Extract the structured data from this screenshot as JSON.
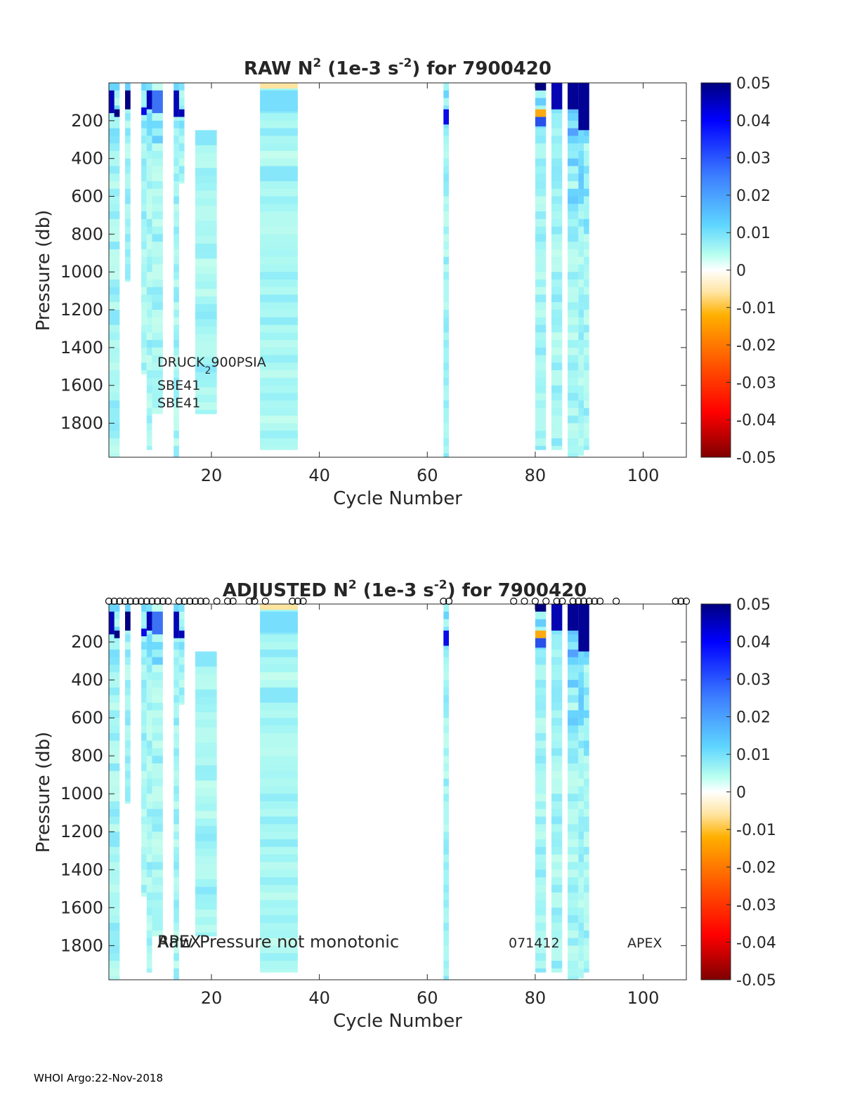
{
  "footer": "WHOI Argo:22-Nov-2018",
  "colorbar": {
    "ticks": [
      "0.05",
      "0.04",
      "0.03",
      "0.02",
      "0.01",
      "0",
      "-0.01",
      "-0.02",
      "-0.03",
      "-0.04",
      "-0.05"
    ],
    "range": [
      -0.05,
      0.05
    ]
  },
  "chart_data": [
    {
      "type": "heatmap",
      "title": {
        "prefix": "RAW N",
        "sup1": "2",
        "mid": " (1e-3 s",
        "sup2": "-2",
        "suffix": ") for 7900420"
      },
      "xlabel": "Cycle Number",
      "ylabel": "Pressure (db)",
      "xlim": [
        1,
        108
      ],
      "ylim": [
        0,
        1980
      ],
      "xticks": [
        "20",
        "40",
        "60",
        "80",
        "100"
      ],
      "yticks": [
        "200",
        "400",
        "600",
        "800",
        "1000",
        "1200",
        "1400",
        "1600",
        "1800"
      ],
      "annotations": {
        "sensor_main": "DRUCK",
        "sensor_sub": "2",
        "sensor_rest": "900PSIA",
        "line2": "SBE41",
        "line3": "SBE41"
      },
      "profiles": [
        {
          "x0": 1,
          "x1": 3,
          "pmax": 1980
        },
        {
          "x0": 4,
          "x1": 5,
          "pmax": 1050
        },
        {
          "x0": 7,
          "x1": 8,
          "pmax": 1540
        },
        {
          "x0": 8,
          "x1": 9,
          "pmax": 1940
        },
        {
          "x0": 9,
          "x1": 11,
          "pmax": 1750
        },
        {
          "x0": 13,
          "x1": 14,
          "pmax": 1980
        },
        {
          "x0": 14,
          "x1": 15,
          "pmax": 530
        },
        {
          "x0": 17,
          "x1": 21,
          "pmax": 1750,
          "pmin": 250
        },
        {
          "x0": 29,
          "x1": 36,
          "pmax": 1940
        },
        {
          "x0": 63,
          "x1": 64,
          "pmax": 1980
        },
        {
          "x0": 80,
          "x1": 82,
          "pmax": 1940
        },
        {
          "x0": 83,
          "x1": 85,
          "pmax": 1940
        },
        {
          "x0": 86,
          "x1": 88,
          "pmax": 1980
        },
        {
          "x0": 88,
          "x1": 89,
          "pmax": 1970
        },
        {
          "x0": 89,
          "x1": 90,
          "pmax": 1940
        }
      ],
      "high_cells": [
        {
          "x0": 1,
          "x1": 2,
          "p0": 40,
          "p1": 160,
          "v": 0.045
        },
        {
          "x0": 2,
          "x1": 3,
          "p0": 140,
          "p1": 180,
          "v": 0.05
        },
        {
          "x0": 4,
          "x1": 5,
          "p0": 40,
          "p1": 140,
          "v": 0.05
        },
        {
          "x0": 7,
          "x1": 8,
          "p0": 130,
          "p1": 170,
          "v": 0.04
        },
        {
          "x0": 8,
          "x1": 9,
          "p0": 40,
          "p1": 140,
          "v": 0.045
        },
        {
          "x0": 9,
          "x1": 11,
          "p0": 40,
          "p1": 160,
          "v": 0.025
        },
        {
          "x0": 13,
          "x1": 14,
          "p0": 40,
          "p1": 180,
          "v": 0.045
        },
        {
          "x0": 14,
          "x1": 15,
          "p0": 140,
          "p1": 180,
          "v": 0.045
        },
        {
          "x0": 29,
          "x1": 36,
          "p0": 40,
          "p1": 150,
          "v": 0.011
        },
        {
          "x0": 63,
          "x1": 64,
          "p0": 140,
          "p1": 220,
          "v": 0.04
        },
        {
          "x0": 80,
          "x1": 82,
          "p0": 0,
          "p1": 40,
          "v": 0.05
        },
        {
          "x0": 80,
          "x1": 82,
          "p0": 140,
          "p1": 180,
          "v": -0.012
        },
        {
          "x0": 80,
          "x1": 82,
          "p0": 180,
          "p1": 230,
          "v": 0.03
        },
        {
          "x0": 83,
          "x1": 85,
          "p0": 0,
          "p1": 140,
          "v": 0.045
        },
        {
          "x0": 86,
          "x1": 88,
          "p0": 0,
          "p1": 140,
          "v": 0.048
        },
        {
          "x0": 88,
          "x1": 90,
          "p0": 0,
          "p1": 250,
          "v": 0.048
        }
      ]
    },
    {
      "type": "heatmap",
      "title": {
        "prefix": "ADJUSTED N",
        "sup1": "2",
        "mid": " (1e-3 s",
        "sup2": "-2",
        "suffix": ") for 7900420"
      },
      "xlabel": "Cycle Number",
      "ylabel": "Pressure (db)",
      "xlim": [
        1,
        108
      ],
      "ylim": [
        0,
        1980
      ],
      "xticks": [
        "20",
        "40",
        "60",
        "80",
        "100"
      ],
      "yticks": [
        "200",
        "400",
        "600",
        "800",
        "1000",
        "1200",
        "1400",
        "1600",
        "1800"
      ],
      "annotations": {
        "left_overlap_a": "APEX",
        "left_overlap_b": "Raw",
        "left_main": "Pressure not monotonic",
        "mid_right": "071412",
        "right": "APEX"
      },
      "marker_cycles": [
        1,
        2,
        3,
        4,
        5,
        6,
        7,
        8,
        9,
        10,
        11,
        12,
        14,
        15,
        16,
        17,
        18,
        19,
        21,
        23,
        24,
        27,
        28,
        30,
        35,
        36,
        37,
        63,
        64,
        76,
        78,
        80,
        82,
        84,
        85,
        87,
        88,
        89,
        90,
        91,
        92,
        95,
        106,
        107,
        108
      ]
    }
  ]
}
